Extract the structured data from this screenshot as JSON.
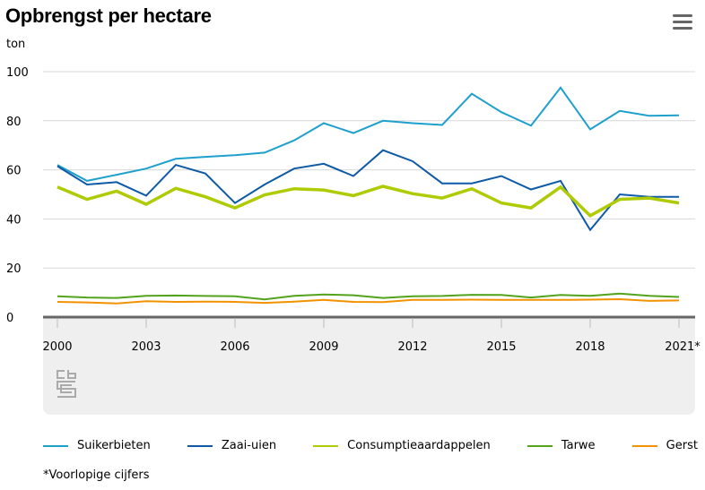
{
  "title": "Opbrengst per hectare",
  "footnote": "*Voorlopige cijfers",
  "icons": {
    "menu": "hamburger-menu-icon",
    "logo": "cbs-logo"
  },
  "chart_data": {
    "type": "line",
    "title": "Opbrengst per hectare",
    "ylabel": "ton",
    "xlabel": "",
    "ylim": [
      0,
      100
    ],
    "yticks": [
      0,
      20,
      40,
      60,
      80,
      100
    ],
    "grid": true,
    "legend": "bottom",
    "x": [
      2000,
      2001,
      2002,
      2003,
      2004,
      2005,
      2006,
      2007,
      2008,
      2009,
      2010,
      2011,
      2012,
      2013,
      2014,
      2015,
      2016,
      2017,
      2018,
      2019,
      2020,
      2021
    ],
    "xtick_labels": [
      "2000",
      "2003",
      "2006",
      "2009",
      "2012",
      "2015",
      "2018",
      "2021*"
    ],
    "xtick_years": [
      2000,
      2003,
      2006,
      2009,
      2012,
      2015,
      2018,
      2021
    ],
    "series": [
      {
        "name": "Suikerbieten",
        "color": "#1fa0cc",
        "values": [
          62,
          55.5,
          58,
          60.5,
          64.5,
          65.3,
          66,
          67,
          72,
          79,
          75,
          80,
          79,
          78.3,
          91,
          83.5,
          78,
          93.5,
          76.5,
          84,
          82,
          82.2
        ]
      },
      {
        "name": "Zaai-uien",
        "color": "#0e5aa7",
        "values": [
          61.5,
          54,
          55,
          49.5,
          62,
          58.5,
          46.5,
          54,
          60.5,
          62.5,
          57.5,
          68,
          63.5,
          54.5,
          54.5,
          57.5,
          52,
          55.5,
          35.5,
          50,
          49,
          49
        ]
      },
      {
        "name": "Consumptieaardappelen",
        "color": "#afcb05",
        "values": [
          53,
          48,
          51.3,
          46,
          52.5,
          49,
          44.5,
          49.8,
          52.3,
          51.8,
          49.5,
          53.3,
          50.3,
          48.5,
          52.3,
          46.5,
          44.5,
          53,
          41.3,
          48,
          48.5,
          46.5
        ]
      },
      {
        "name": "Tarwe",
        "color": "#53a31d",
        "values": [
          8.5,
          8,
          7.8,
          8.7,
          8.8,
          8.6,
          8.5,
          7.2,
          8.7,
          9.2,
          8.9,
          7.8,
          8.5,
          8.6,
          9.1,
          9,
          8,
          9,
          8.7,
          9.6,
          8.7,
          8.2
        ]
      },
      {
        "name": "Gerst",
        "color": "#f39200",
        "values": [
          6.2,
          6,
          5.6,
          6.5,
          6.2,
          6.3,
          6.2,
          5.8,
          6.3,
          7,
          6.2,
          6.1,
          7,
          7,
          7.1,
          7,
          7,
          7,
          7.1,
          7.3,
          6.6,
          6.8
        ]
      }
    ]
  }
}
